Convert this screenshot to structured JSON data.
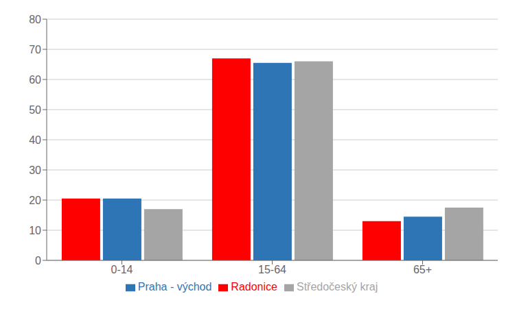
{
  "chart_data": {
    "type": "bar",
    "categories": [
      "0-14",
      "15-64",
      "65+"
    ],
    "series": [
      {
        "name": "Radonice",
        "color": "#FF0000",
        "values": [
          20.5,
          67.0,
          13.0
        ]
      },
      {
        "name": "Praha - východ",
        "color": "#2E75B6",
        "values": [
          20.5,
          65.5,
          14.5
        ]
      },
      {
        "name": "Středočeský kraj",
        "color": "#A5A5A5",
        "values": [
          17.0,
          66.0,
          17.5
        ]
      }
    ],
    "ylim": [
      0,
      80
    ],
    "yticks": [
      0,
      10,
      20,
      30,
      40,
      50,
      60,
      70,
      80
    ],
    "grid": true,
    "legend": "bottom"
  }
}
